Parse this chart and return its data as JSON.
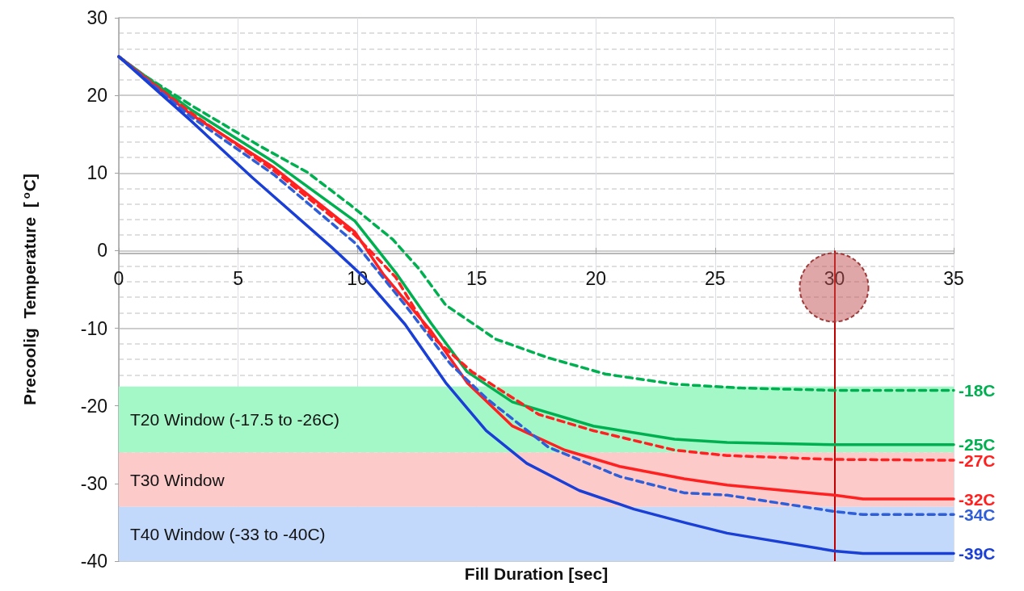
{
  "chart_data": {
    "type": "line",
    "xlabel": "Fill Duration [sec]",
    "ylabel": "Precoolig  Temperature  [$^{o}$C]",
    "xlim": [
      0,
      35
    ],
    "xticks": [
      0,
      5,
      10,
      15,
      20,
      25,
      30,
      35
    ],
    "ylim": [
      -40,
      30
    ],
    "yticks": [
      -40,
      -30,
      -20,
      -10,
      0,
      10,
      20,
      30
    ],
    "grid": true,
    "marker": "none",
    "series": [
      {
        "name": "-18C",
        "color": "#00b050",
        "line_style": "dashed",
        "x": [
          0,
          0.9,
          3.05,
          5.9,
          7.9,
          9.7,
          11.5,
          12.6,
          13.7,
          15.8,
          18.0,
          20.4,
          23.3,
          26.1,
          30,
          35
        ],
        "values": [
          25,
          22.9,
          18.7,
          13.5,
          10.1,
          5.9,
          1.4,
          -2.4,
          -7.0,
          -11.4,
          -13.8,
          -15.9,
          -17.2,
          -17.7,
          -18,
          -18
        ]
      },
      {
        "name": "-25C",
        "color": "#00b050",
        "line_style": "solid",
        "x": [
          0,
          3,
          6.5,
          9.9,
          11.6,
          13.1,
          14.6,
          16.5,
          19.9,
          23.3,
          25.5,
          30,
          35
        ],
        "values": [
          25,
          18.2,
          11.4,
          3.8,
          -2.8,
          -9.4,
          -15.6,
          -19.5,
          -22.6,
          -24.3,
          -24.7,
          -25,
          -25
        ]
      },
      {
        "name": "-27C",
        "color": "#ff2020",
        "line_style": "dashed",
        "x": [
          0,
          3,
          6.5,
          9.9,
          11.6,
          13.1,
          14.8,
          17.6,
          19.9,
          23.3,
          25.5,
          30,
          35
        ],
        "values": [
          25,
          17.8,
          10.3,
          2.0,
          -3.4,
          -11.0,
          -15.6,
          -21.1,
          -23.2,
          -25.7,
          -26.4,
          -26.9,
          -27
        ]
      },
      {
        "name": "-32C",
        "color": "#ff2020",
        "line_style": "solid",
        "x": [
          0,
          3,
          6.5,
          9.9,
          11.1,
          13.1,
          14.6,
          16.5,
          18.7,
          21.0,
          23.7,
          25.5,
          30,
          31.2,
          35
        ],
        "values": [
          25,
          17.6,
          10.7,
          2.4,
          -3.1,
          -10.4,
          -17.0,
          -22.6,
          -25.7,
          -27.8,
          -29.4,
          -30.2,
          -31.5,
          -32,
          -32
        ]
      },
      {
        "name": "-34C",
        "color": "#2f5fd8",
        "line_style": "dashed",
        "x": [
          0,
          3,
          6.5,
          9.9,
          12.0,
          13.9,
          15.4,
          18.0,
          21.0,
          23.7,
          25.5,
          30,
          31.2,
          35
        ],
        "values": [
          25,
          17.3,
          9.8,
          1.0,
          -7.0,
          -14.6,
          -19.0,
          -25.3,
          -29.1,
          -31.2,
          -31.5,
          -33.6,
          -34,
          -34
        ]
      },
      {
        "name": "-39C",
        "color": "#1a3fd6",
        "line_style": "solid",
        "x": [
          0,
          3,
          5.6,
          8.9,
          10.3,
          12.0,
          13.7,
          15.4,
          17.1,
          19.3,
          21.6,
          23.8,
          25.5,
          30,
          31.2,
          35
        ],
        "values": [
          25,
          16.8,
          9.4,
          0.5,
          -3.5,
          -9.5,
          -17.0,
          -23.2,
          -27.4,
          -30.9,
          -33.3,
          -35.1,
          -36.4,
          -38.7,
          -39,
          -39
        ]
      }
    ],
    "bands": [
      {
        "axis": "y",
        "from": -17.5,
        "to": -26,
        "label": "T20 Window (-17.5 to -26C)",
        "color": "#a4f8c8"
      },
      {
        "axis": "y",
        "from": -26,
        "to": -33,
        "label": "T30 Window",
        "color": "#fdcaca"
      },
      {
        "axis": "y",
        "from": -33,
        "to": -40,
        "label": "T40 Window (-33 to -40C)",
        "color": "#c3d9fb"
      }
    ],
    "ref_lines": [
      {
        "axis": "x",
        "value": 30,
        "color": "#c00000",
        "line_style": "solid"
      }
    ]
  }
}
